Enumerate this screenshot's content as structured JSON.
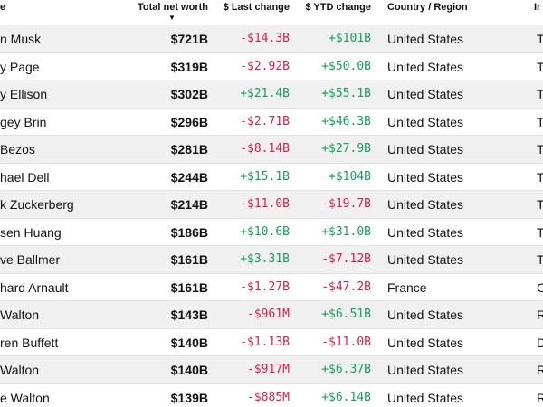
{
  "table": {
    "columns": {
      "name": "e",
      "net_worth": "Total net worth",
      "last_change": "$ Last change",
      "ytd_change": "$ YTD change",
      "country": "Country / Region",
      "industry": "Ir"
    },
    "sort_indicator": "▼",
    "rows": [
      {
        "name": "n Musk",
        "net_worth": "$721B",
        "last_change": "-$14.3B",
        "ytd_change": "+$101B",
        "country": "United States",
        "industry": "T"
      },
      {
        "name": "y Page",
        "net_worth": "$319B",
        "last_change": "-$2.92B",
        "ytd_change": "+$50.0B",
        "country": "United States",
        "industry": "T"
      },
      {
        "name": "y Ellison",
        "net_worth": "$302B",
        "last_change": "+$21.4B",
        "ytd_change": "+$55.1B",
        "country": "United States",
        "industry": "T"
      },
      {
        "name": "gey Brin",
        "net_worth": "$296B",
        "last_change": "-$2.71B",
        "ytd_change": "+$46.3B",
        "country": "United States",
        "industry": "T"
      },
      {
        "name": "Bezos",
        "net_worth": "$281B",
        "last_change": "-$8.14B",
        "ytd_change": "+$27.9B",
        "country": "United States",
        "industry": "T"
      },
      {
        "name": "hael Dell",
        "net_worth": "$244B",
        "last_change": "+$15.1B",
        "ytd_change": "+$104B",
        "country": "United States",
        "industry": "T"
      },
      {
        "name": "k Zuckerberg",
        "net_worth": "$214B",
        "last_change": "-$11.0B",
        "ytd_change": "-$19.7B",
        "country": "United States",
        "industry": "T"
      },
      {
        "name": "sen Huang",
        "net_worth": "$186B",
        "last_change": "+$10.6B",
        "ytd_change": "+$31.0B",
        "country": "United States",
        "industry": "T"
      },
      {
        "name": "ve Ballmer",
        "net_worth": "$161B",
        "last_change": "+$3.31B",
        "ytd_change": "-$7.12B",
        "country": "United States",
        "industry": "T"
      },
      {
        "name": "hard Arnault",
        "net_worth": "$161B",
        "last_change": "-$1.27B",
        "ytd_change": "-$47.2B",
        "country": "France",
        "industry": "C"
      },
      {
        "name": "Walton",
        "net_worth": "$143B",
        "last_change": "-$961M",
        "ytd_change": "+$6.51B",
        "country": "United States",
        "industry": "R"
      },
      {
        "name": "ren Buffett",
        "net_worth": "$140B",
        "last_change": "-$1.13B",
        "ytd_change": "-$11.0B",
        "country": "United States",
        "industry": "D"
      },
      {
        "name": "Walton",
        "net_worth": "$140B",
        "last_change": "-$917M",
        "ytd_change": "+$6.37B",
        "country": "United States",
        "industry": "R"
      },
      {
        "name": "e Walton",
        "net_worth": "$139B",
        "last_change": "-$885M",
        "ytd_change": "+$6.14B",
        "country": "United States",
        "industry": "R"
      }
    ]
  },
  "colors": {
    "negative": "#d6204d",
    "positive": "#16a05a",
    "row_alt": "#f0f0f0"
  }
}
